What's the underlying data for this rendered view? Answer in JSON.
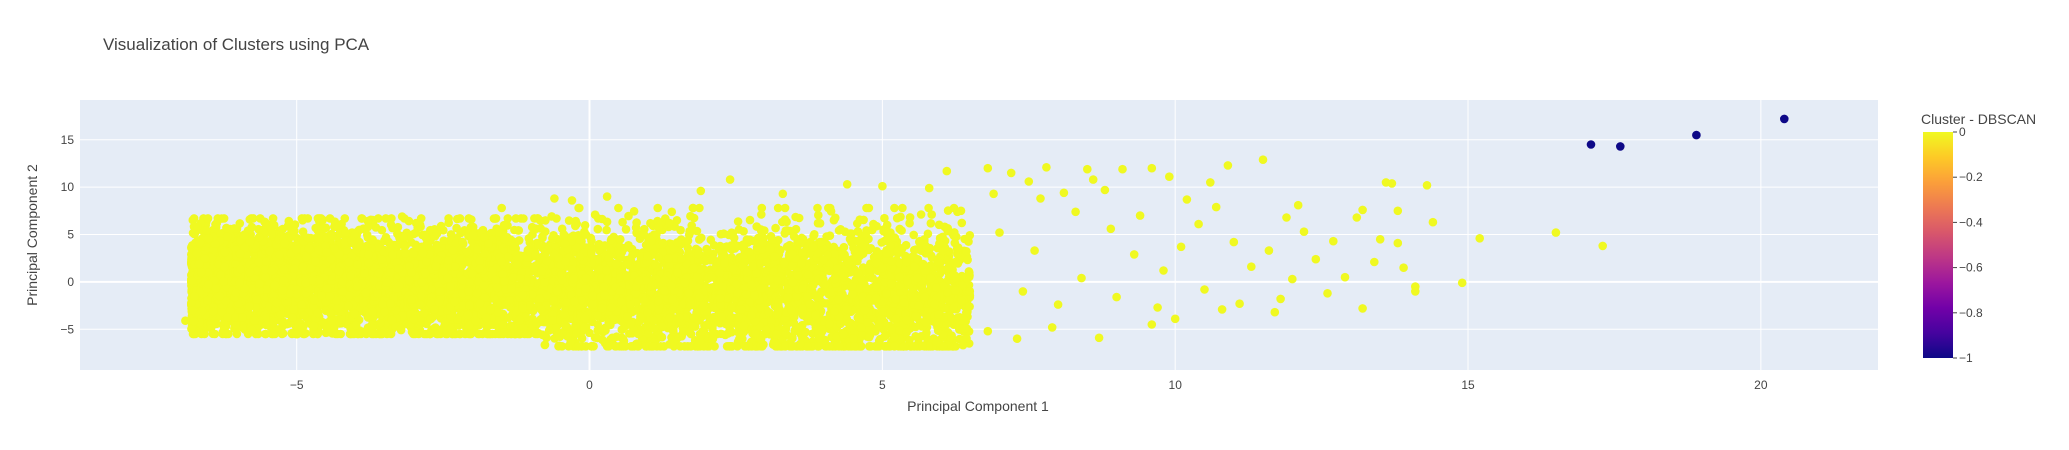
{
  "chart_data": {
    "type": "scatter",
    "title": "Visualization of Clusters using PCA",
    "xlabel": "Principal Component 1",
    "ylabel": "Principal Component 2",
    "xlim": [
      -8.7,
      22
    ],
    "ylim": [
      -9.3,
      19.2
    ],
    "x_ticks": [
      -5,
      0,
      5,
      10,
      15,
      20
    ],
    "y_ticks": [
      -5,
      0,
      5,
      10,
      15
    ],
    "grid": true,
    "colorbar": {
      "title": "Cluster - DBSCAN",
      "range": [
        -1,
        0
      ],
      "ticks": [
        0,
        -0.2,
        -0.4,
        -0.6,
        -0.8,
        -1
      ],
      "tick_labels": [
        "0",
        "−0.2",
        "−0.4",
        "−0.6",
        "−0.8",
        "−1"
      ],
      "colorscale": [
        "#0d0887",
        "#46039f",
        "#7201a8",
        "#9c179e",
        "#bd3786",
        "#d8576b",
        "#ed7953",
        "#fb9f3a",
        "#fdca26",
        "#f0f921"
      ]
    },
    "series": [
      {
        "cluster": -1,
        "color": "#0d0887",
        "points": [
          [
            17.1,
            14.5
          ],
          [
            17.6,
            14.3
          ],
          [
            18.9,
            15.5
          ],
          [
            20.4,
            17.2
          ]
        ]
      },
      {
        "cluster": 0,
        "color": "#f0f921",
        "dense_region": {
          "x_range": [
            -6.8,
            6.5
          ],
          "y_range": [
            -6.8,
            7.8
          ]
        },
        "points": [
          [
            -6.9,
            -4.1
          ],
          [
            -6.7,
            3.0
          ],
          [
            -6.5,
            4.6
          ],
          [
            -6.2,
            5.7
          ],
          [
            -5.8,
            6.6
          ],
          [
            -4.9,
            6.5
          ],
          [
            -3.2,
            6.9
          ],
          [
            -1.5,
            7.8
          ],
          [
            -0.6,
            8.8
          ],
          [
            -0.3,
            8.6
          ],
          [
            0.3,
            9.0
          ],
          [
            1.9,
            9.6
          ],
          [
            2.4,
            10.8
          ],
          [
            3.3,
            9.3
          ],
          [
            4.4,
            10.3
          ],
          [
            5.0,
            10.1
          ],
          [
            5.8,
            9.9
          ],
          [
            6.1,
            11.7
          ],
          [
            6.8,
            12.0
          ],
          [
            7.2,
            11.5
          ],
          [
            7.5,
            10.6
          ],
          [
            7.8,
            12.1
          ],
          [
            8.1,
            9.4
          ],
          [
            8.5,
            11.9
          ],
          [
            8.6,
            10.8
          ],
          [
            9.1,
            11.9
          ],
          [
            9.6,
            12.0
          ],
          [
            9.9,
            11.1
          ],
          [
            10.2,
            8.7
          ],
          [
            10.6,
            10.5
          ],
          [
            10.9,
            12.3
          ],
          [
            11.5,
            12.9
          ],
          [
            11.9,
            6.8
          ],
          [
            12.1,
            8.1
          ],
          [
            12.4,
            2.4
          ],
          [
            12.7,
            4.3
          ],
          [
            13.1,
            6.8
          ],
          [
            13.2,
            7.6
          ],
          [
            13.5,
            4.5
          ],
          [
            13.6,
            10.5
          ],
          [
            13.7,
            10.4
          ],
          [
            13.8,
            4.1
          ],
          [
            13.8,
            7.5
          ],
          [
            13.9,
            1.5
          ],
          [
            14.3,
            10.2
          ],
          [
            14.4,
            6.3
          ],
          [
            14.1,
            -0.5
          ],
          [
            14.1,
            -1.0
          ],
          [
            13.2,
            -2.8
          ],
          [
            11.7,
            -3.2
          ],
          [
            15.2,
            4.6
          ],
          [
            16.5,
            5.2
          ],
          [
            17.3,
            3.8
          ],
          [
            14.9,
            -0.1
          ],
          [
            12.6,
            -1.2
          ],
          [
            12.0,
            0.3
          ],
          [
            11.3,
            1.6
          ],
          [
            10.8,
            -2.9
          ],
          [
            11.0,
            4.2
          ],
          [
            10.0,
            -3.9
          ],
          [
            9.6,
            -4.5
          ],
          [
            9.3,
            2.9
          ],
          [
            8.9,
            5.6
          ],
          [
            8.7,
            -5.9
          ],
          [
            8.3,
            7.4
          ],
          [
            7.9,
            -4.8
          ],
          [
            7.6,
            3.3
          ],
          [
            7.3,
            -6.0
          ],
          [
            7.0,
            5.2
          ],
          [
            6.8,
            -5.2
          ],
          [
            12.9,
            0.5
          ],
          [
            10.4,
            6.1
          ],
          [
            9.8,
            1.2
          ],
          [
            8.0,
            -2.4
          ],
          [
            11.8,
            -1.8
          ],
          [
            13.4,
            2.1
          ],
          [
            10.7,
            7.9
          ],
          [
            9.0,
            -1.6
          ],
          [
            12.2,
            5.3
          ],
          [
            11.6,
            3.3
          ],
          [
            7.7,
            8.8
          ],
          [
            8.4,
            0.4
          ],
          [
            9.4,
            7.0
          ],
          [
            10.1,
            3.7
          ],
          [
            6.9,
            9.3
          ],
          [
            7.4,
            -1.0
          ],
          [
            8.8,
            9.7
          ],
          [
            10.5,
            -0.8
          ],
          [
            9.7,
            -2.7
          ],
          [
            11.1,
            -2.3
          ]
        ]
      }
    ]
  }
}
